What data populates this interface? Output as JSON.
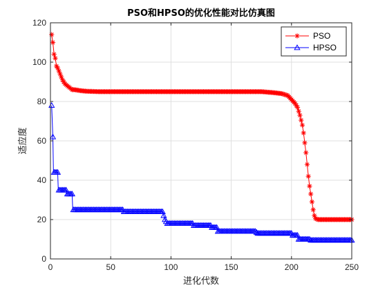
{
  "chart_data": {
    "type": "line",
    "title": "PSO和HPSO的优化性能对比仿真图",
    "xlabel": "进化代数",
    "ylabel": "适应度",
    "xlim": [
      0,
      250
    ],
    "ylim": [
      0,
      120
    ],
    "xticks": [
      "0",
      "50",
      "100",
      "150",
      "200",
      "250"
    ],
    "yticks": [
      "0",
      "20",
      "40",
      "60",
      "80",
      "100",
      "120"
    ],
    "grid": true,
    "legend_position": "top-right",
    "series": [
      {
        "name": "PSO",
        "color": "#ff0000",
        "marker": "asterisk",
        "points": [
          [
            1,
            114
          ],
          [
            2,
            110
          ],
          [
            3,
            104
          ],
          [
            4,
            102
          ],
          [
            5,
            98
          ],
          [
            6,
            97
          ],
          [
            8,
            94
          ],
          [
            10,
            91
          ],
          [
            12,
            89
          ],
          [
            14,
            88
          ],
          [
            16,
            87
          ],
          [
            18,
            86
          ],
          [
            20,
            86
          ],
          [
            25,
            85.5
          ],
          [
            30,
            85.2
          ],
          [
            40,
            85
          ],
          [
            60,
            85
          ],
          [
            80,
            85
          ],
          [
            100,
            85
          ],
          [
            120,
            85
          ],
          [
            140,
            85
          ],
          [
            160,
            85
          ],
          [
            175,
            85
          ],
          [
            185,
            84.5
          ],
          [
            192,
            84
          ],
          [
            197,
            83
          ],
          [
            200,
            81
          ],
          [
            203,
            79
          ],
          [
            205,
            77
          ],
          [
            207,
            73
          ],
          [
            209,
            68
          ],
          [
            210,
            64
          ],
          [
            211,
            59
          ],
          [
            212,
            54
          ],
          [
            213,
            48
          ],
          [
            214,
            42
          ],
          [
            215,
            37
          ],
          [
            216,
            33
          ],
          [
            217,
            29
          ],
          [
            218,
            25
          ],
          [
            219,
            22
          ],
          [
            220,
            20.5
          ],
          [
            222,
            20
          ],
          [
            230,
            20
          ],
          [
            240,
            20
          ],
          [
            250,
            20
          ]
        ]
      },
      {
        "name": "HPSO",
        "color": "#0000ff",
        "marker": "triangle",
        "points": [
          [
            1,
            78
          ],
          [
            2,
            62
          ],
          [
            2.5,
            44
          ],
          [
            3,
            44
          ],
          [
            6,
            44
          ],
          [
            6.5,
            35
          ],
          [
            13,
            35
          ],
          [
            13.5,
            33
          ],
          [
            18,
            33
          ],
          [
            18.5,
            25
          ],
          [
            60,
            25
          ],
          [
            60.5,
            24
          ],
          [
            90,
            24
          ],
          [
            93,
            24
          ],
          [
            94,
            22
          ],
          [
            95,
            20
          ],
          [
            97,
            18
          ],
          [
            118,
            18
          ],
          [
            118.5,
            17
          ],
          [
            133,
            17
          ],
          [
            133.5,
            16
          ],
          [
            138,
            16
          ],
          [
            139,
            14
          ],
          [
            170,
            14
          ],
          [
            172,
            13
          ],
          [
            180,
            13
          ],
          [
            190,
            13
          ],
          [
            200,
            13
          ],
          [
            201,
            12
          ],
          [
            205,
            12
          ],
          [
            206,
            10
          ],
          [
            215,
            10
          ],
          [
            216,
            9.5
          ],
          [
            250,
            9.5
          ]
        ]
      }
    ]
  }
}
